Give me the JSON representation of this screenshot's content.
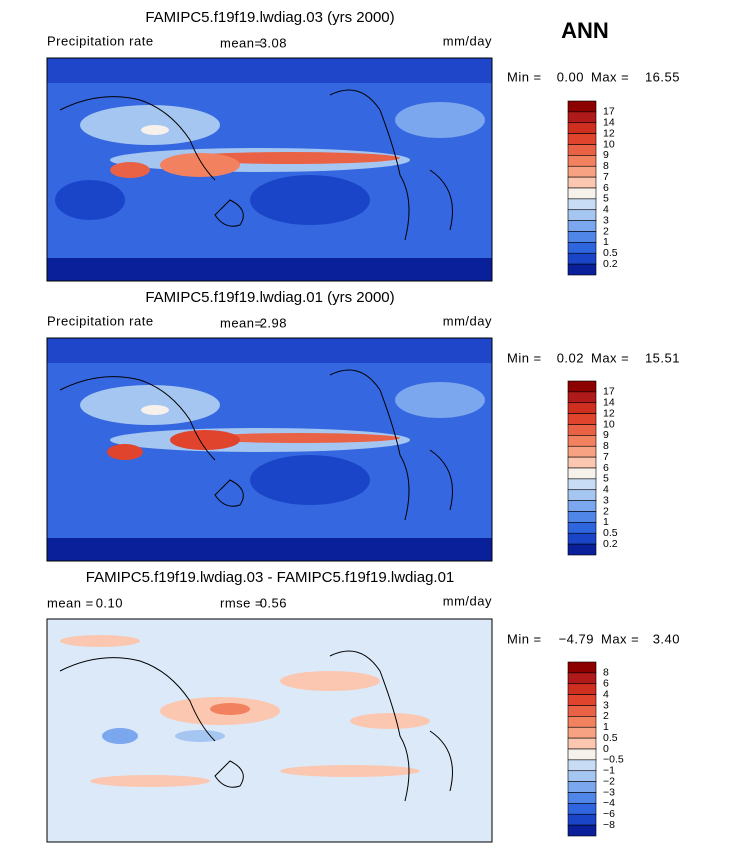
{
  "figure_label": "ANN",
  "panels": [
    {
      "title": "FAMIPC5.f19f19.lwdiag.03 (yrs 2000)",
      "variable": "Precipitation rate",
      "stat_label": "mean=",
      "stat_value": "3.08",
      "units": "mm/day",
      "min_label": "Min =",
      "min_value": "0.00",
      "max_label": "Max =",
      "max_value": "16.55",
      "colorbar": {
        "labels": [
          "17",
          "14",
          "12",
          "10",
          "9",
          "8",
          "7",
          "6",
          "5",
          "4",
          "3",
          "2",
          "1",
          "0.5",
          "0.2"
        ],
        "colors": [
          "#8c0000",
          "#b01a1a",
          "#cf2f1f",
          "#e0442d",
          "#ea6245",
          "#f2815f",
          "#f7a282",
          "#fbc7b0",
          "#f7f1ec",
          "#c9dcf5",
          "#a6c6f2",
          "#7aa7ee",
          "#4f86e8",
          "#2f66e0",
          "#1b45c9",
          "#0a1f9a"
        ]
      }
    },
    {
      "title": "FAMIPC5.f19f19.lwdiag.01 (yrs 2000)",
      "variable": "Precipitation rate",
      "stat_label": "mean=",
      "stat_value": "2.98",
      "units": "mm/day",
      "min_label": "Min =",
      "min_value": "0.02",
      "max_label": "Max =",
      "max_value": "15.51",
      "colorbar": {
        "labels": [
          "17",
          "14",
          "12",
          "10",
          "9",
          "8",
          "7",
          "6",
          "5",
          "4",
          "3",
          "2",
          "1",
          "0.5",
          "0.2"
        ],
        "colors": [
          "#8c0000",
          "#b01a1a",
          "#cf2f1f",
          "#e0442d",
          "#ea6245",
          "#f2815f",
          "#f7a282",
          "#fbc7b0",
          "#f7f1ec",
          "#c9dcf5",
          "#a6c6f2",
          "#7aa7ee",
          "#4f86e8",
          "#2f66e0",
          "#1b45c9",
          "#0a1f9a"
        ]
      }
    },
    {
      "title": "FAMIPC5.f19f19.lwdiag.03 - FAMIPC5.f19f19.lwdiag.01",
      "stat_label": "mean =",
      "stat_value": "0.10",
      "stat2_label": "rmse =",
      "stat2_value": "0.56",
      "units": "mm/day",
      "min_label": "Min =",
      "min_value": "−4.79",
      "max_label": "Max =",
      "max_value": "3.40",
      "colorbar": {
        "labels": [
          "8",
          "6",
          "4",
          "3",
          "2",
          "1",
          "0.5",
          "0",
          "−0.5",
          "−1",
          "−2",
          "−3",
          "−4",
          "−6",
          "−8"
        ],
        "colors": [
          "#8c0000",
          "#b01a1a",
          "#cf2f1f",
          "#e0442d",
          "#ea6245",
          "#f2815f",
          "#f7a282",
          "#fbc7b0",
          "#f7f1ec",
          "#c9dcf5",
          "#a6c6f2",
          "#7aa7ee",
          "#4f86e8",
          "#2f66e0",
          "#1b45c9",
          "#0a1f9a"
        ]
      }
    }
  ]
}
